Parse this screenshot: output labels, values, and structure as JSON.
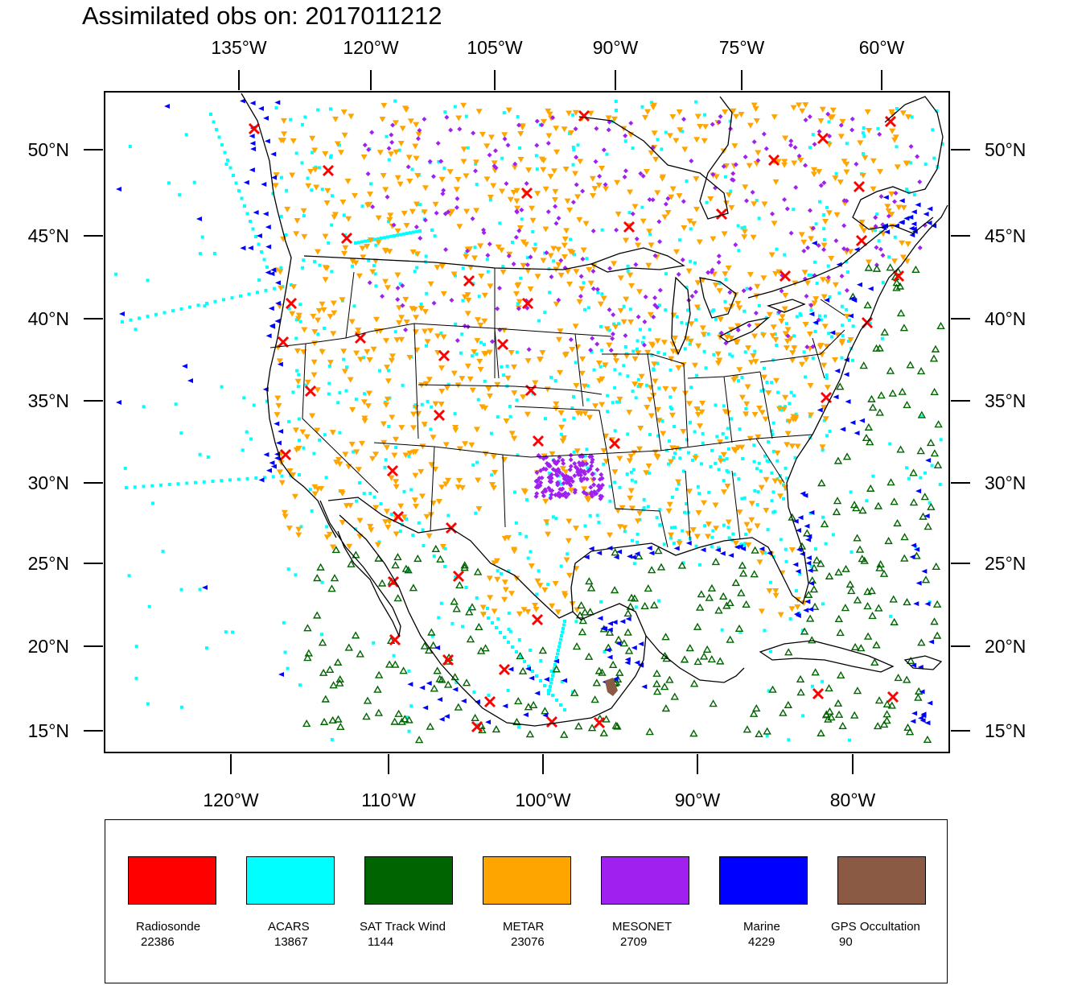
{
  "title": "Assimilated obs on: 2017011212",
  "top_lon_labels": [
    "135°W",
    "120°W",
    "105°W",
    "90°W",
    "75°W",
    "60°W"
  ],
  "bottom_lon_labels": [
    "120°W",
    "110°W",
    "100°W",
    "90°W",
    "80°W"
  ],
  "lat_labels": [
    "50°N",
    "45°N",
    "40°N",
    "35°N",
    "30°N",
    "25°N",
    "20°N",
    "15°N"
  ],
  "legend": [
    {
      "name": "Radiosonde",
      "count": "22386",
      "color": "#ff0000"
    },
    {
      "name": "ACARS",
      "count": "13867",
      "color": "#00ffff"
    },
    {
      "name": "SAT Track Wind",
      "count": "1144",
      "color": "#006400"
    },
    {
      "name": "METAR",
      "count": "23076",
      "color": "#ffa500"
    },
    {
      "name": "MESONET",
      "count": "2709",
      "color": "#a020f0"
    },
    {
      "name": "Marine",
      "count": "4229",
      "color": "#0000ff"
    },
    {
      "name": "GPS Occultation",
      "count": "90",
      "color": "#8b5a44"
    }
  ],
  "markers": {
    "radiosonde": "red-x",
    "acars": "cyan-square",
    "sat_track_wind": "green-triangle-up",
    "metar": "orange-triangle-down",
    "mesonet": "purple-diamond",
    "marine": "blue-triangle-left",
    "gps_occultation": "brown-blob"
  },
  "coastline_color": "#000000",
  "border_color": "#000000"
}
